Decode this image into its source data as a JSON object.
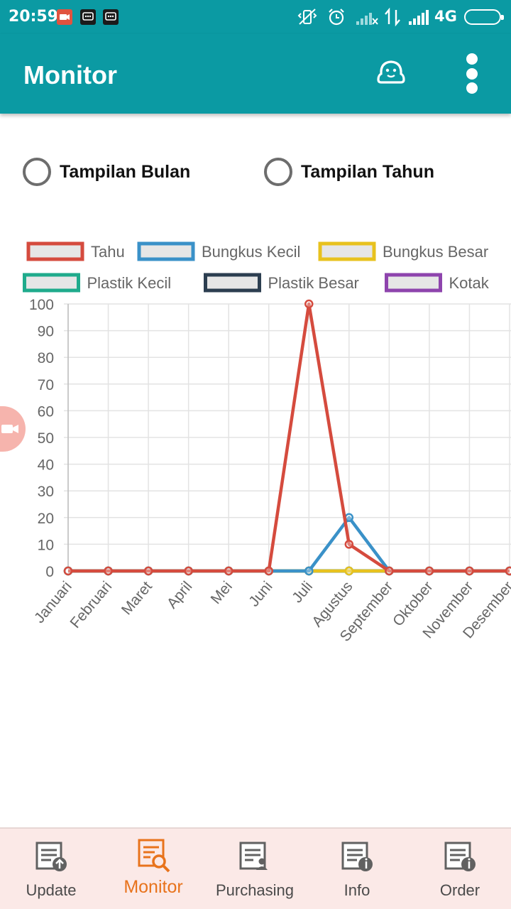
{
  "status_bar": {
    "time": "20:59",
    "network": "4G",
    "icons": [
      "screen-recorder-icon",
      "bbm-icon",
      "bbm-icon",
      "vibrate-icon",
      "alarm-icon",
      "signal-icon",
      "data-arrows-icon",
      "signal-icon",
      "battery-icon"
    ]
  },
  "app_bar": {
    "title": "Monitor",
    "icons": [
      "ghost-icon",
      "overflow-menu-icon"
    ],
    "color": "#0b9aa3"
  },
  "view_options": {
    "month": "Tampilan Bulan",
    "year": "Tampilan Tahun"
  },
  "chart_data": {
    "type": "line",
    "title": "",
    "xlabel": "",
    "ylabel": "",
    "ylim": [
      0,
      100
    ],
    "y_ticks": [
      0,
      10,
      20,
      30,
      40,
      50,
      60,
      70,
      80,
      90,
      100
    ],
    "grid": true,
    "legend_position": "top",
    "categories": [
      "Januari",
      "Februari",
      "Maret",
      "April",
      "Mei",
      "Juni",
      "Juli",
      "Agustus",
      "September",
      "Oktober",
      "November",
      "Desember"
    ],
    "series": [
      {
        "name": "Tahu",
        "color": "#d54b3e",
        "values": [
          0,
          0,
          0,
          0,
          0,
          0,
          100,
          10,
          0,
          0,
          0,
          0
        ]
      },
      {
        "name": "Bungkus Kecil",
        "color": "#3a91c8",
        "values": [
          0,
          0,
          0,
          0,
          0,
          0,
          0,
          20,
          0,
          0,
          0,
          0
        ]
      },
      {
        "name": "Bungkus Besar",
        "color": "#e8c21e",
        "values": [
          0,
          0,
          0,
          0,
          0,
          0,
          0,
          0,
          0,
          0,
          0,
          0
        ]
      },
      {
        "name": "Plastik Kecil",
        "color": "#1fab8c",
        "values": [
          0,
          0,
          0,
          0,
          0,
          0,
          0,
          0,
          0,
          0,
          0,
          0
        ]
      },
      {
        "name": "Plastik Besar",
        "color": "#2c3e50",
        "values": [
          0,
          0,
          0,
          0,
          0,
          0,
          0,
          0,
          0,
          0,
          0,
          0
        ]
      },
      {
        "name": "Kotak",
        "color": "#8e44ad",
        "values": [
          0,
          0,
          0,
          0,
          0,
          0,
          0,
          0,
          0,
          0,
          0,
          0
        ]
      }
    ]
  },
  "bottom_nav": {
    "active_color": "#e8731c",
    "items": [
      {
        "label": "Update",
        "icon": "document-upload-icon"
      },
      {
        "label": "Monitor",
        "icon": "document-search-icon",
        "active": true
      },
      {
        "label": "Purchasing",
        "icon": "document-user-icon"
      },
      {
        "label": "Info",
        "icon": "document-info-icon"
      },
      {
        "label": "Order",
        "icon": "document-info-icon"
      }
    ]
  }
}
